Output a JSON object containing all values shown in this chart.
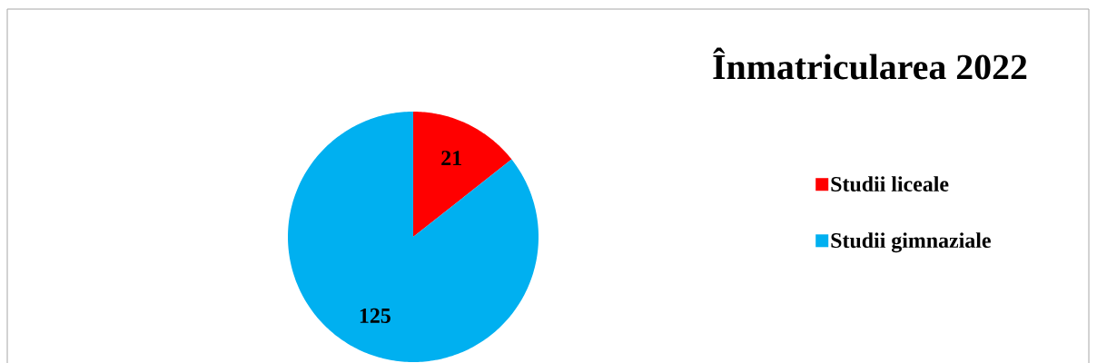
{
  "chart_data": {
    "type": "pie",
    "title": "Înmatricularea 2022",
    "categories": [
      "Studii liceale",
      "Studii gimnaziale"
    ],
    "values": [
      21,
      125
    ],
    "colors": [
      "#ff0000",
      "#00b0f0"
    ],
    "data_labels": true,
    "legend": "right"
  }
}
